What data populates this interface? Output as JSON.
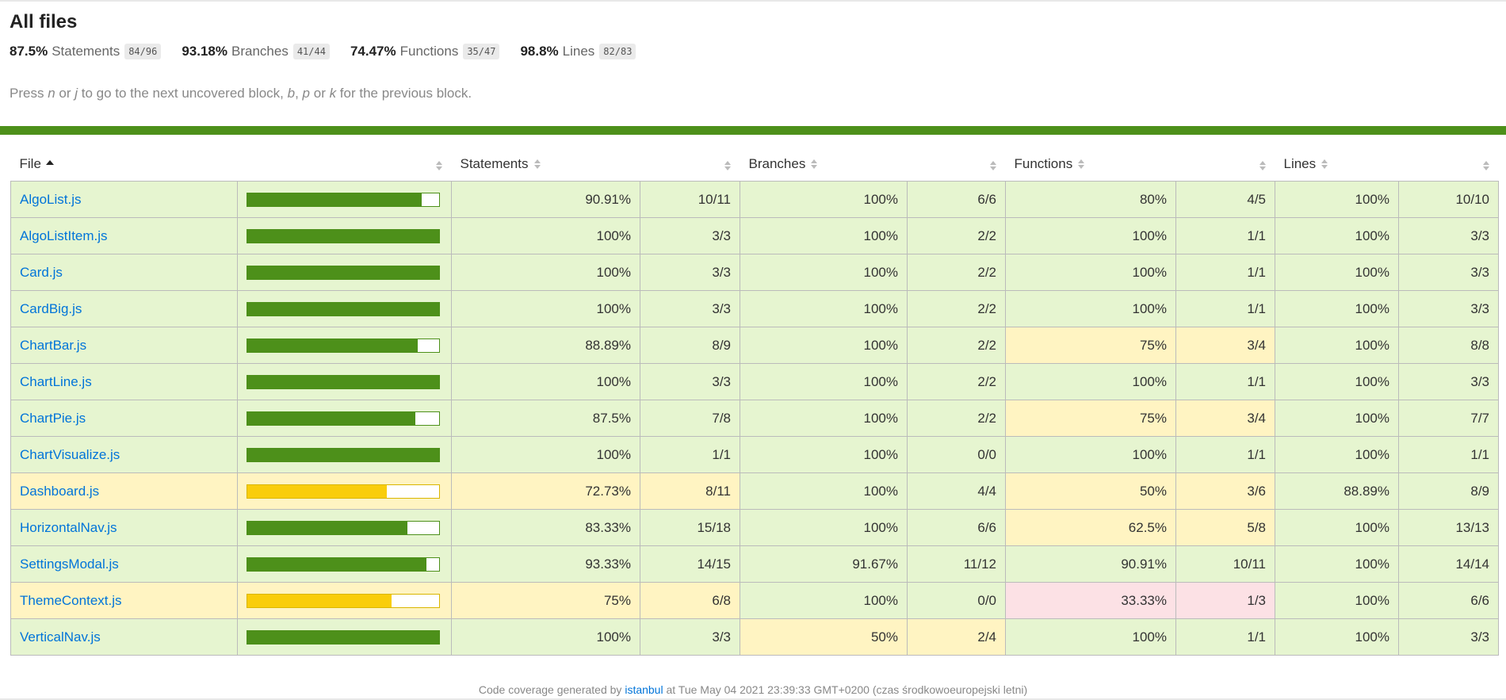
{
  "title": "All files",
  "summary": [
    {
      "pct": "87.5%",
      "label": "Statements",
      "frac": "84/96"
    },
    {
      "pct": "93.18%",
      "label": "Branches",
      "frac": "41/44"
    },
    {
      "pct": "74.47%",
      "label": "Functions",
      "frac": "35/47"
    },
    {
      "pct": "98.8%",
      "label": "Lines",
      "frac": "82/83"
    }
  ],
  "hint": {
    "p1": "Press ",
    "k1": "n",
    "p2": " or ",
    "k2": "j",
    "p3": " to go to the next uncovered block, ",
    "k3": "b",
    "p4": ", ",
    "k4": "p",
    "p5": " or ",
    "k5": "k",
    "p6": " for the previous block."
  },
  "headers": {
    "file": "File",
    "statements": "Statements",
    "branches": "Branches",
    "functions": "Functions",
    "lines": "Lines"
  },
  "rows": [
    {
      "file": "AlgoList.js",
      "level": "high",
      "coverage": 0.9091,
      "s_pct": "90.91%",
      "s_frac": "10/11",
      "b_pct": "100%",
      "b_frac": "6/6",
      "b_lvl": "high",
      "f_pct": "80%",
      "f_frac": "4/5",
      "f_lvl": "high",
      "l_pct": "100%",
      "l_frac": "10/10"
    },
    {
      "file": "AlgoListItem.js",
      "level": "high",
      "coverage": 1.0,
      "s_pct": "100%",
      "s_frac": "3/3",
      "b_pct": "100%",
      "b_frac": "2/2",
      "b_lvl": "high",
      "f_pct": "100%",
      "f_frac": "1/1",
      "f_lvl": "high",
      "l_pct": "100%",
      "l_frac": "3/3"
    },
    {
      "file": "Card.js",
      "level": "high",
      "coverage": 1.0,
      "s_pct": "100%",
      "s_frac": "3/3",
      "b_pct": "100%",
      "b_frac": "2/2",
      "b_lvl": "high",
      "f_pct": "100%",
      "f_frac": "1/1",
      "f_lvl": "high",
      "l_pct": "100%",
      "l_frac": "3/3"
    },
    {
      "file": "CardBig.js",
      "level": "high",
      "coverage": 1.0,
      "s_pct": "100%",
      "s_frac": "3/3",
      "b_pct": "100%",
      "b_frac": "2/2",
      "b_lvl": "high",
      "f_pct": "100%",
      "f_frac": "1/1",
      "f_lvl": "high",
      "l_pct": "100%",
      "l_frac": "3/3"
    },
    {
      "file": "ChartBar.js",
      "level": "high",
      "coverage": 0.8889,
      "s_pct": "88.89%",
      "s_frac": "8/9",
      "b_pct": "100%",
      "b_frac": "2/2",
      "b_lvl": "high",
      "f_pct": "75%",
      "f_frac": "3/4",
      "f_lvl": "medium",
      "l_pct": "100%",
      "l_frac": "8/8"
    },
    {
      "file": "ChartLine.js",
      "level": "high",
      "coverage": 1.0,
      "s_pct": "100%",
      "s_frac": "3/3",
      "b_pct": "100%",
      "b_frac": "2/2",
      "b_lvl": "high",
      "f_pct": "100%",
      "f_frac": "1/1",
      "f_lvl": "high",
      "l_pct": "100%",
      "l_frac": "3/3"
    },
    {
      "file": "ChartPie.js",
      "level": "high",
      "coverage": 0.875,
      "s_pct": "87.5%",
      "s_frac": "7/8",
      "b_pct": "100%",
      "b_frac": "2/2",
      "b_lvl": "high",
      "f_pct": "75%",
      "f_frac": "3/4",
      "f_lvl": "medium",
      "l_pct": "100%",
      "l_frac": "7/7"
    },
    {
      "file": "ChartVisualize.js",
      "level": "high",
      "coverage": 1.0,
      "s_pct": "100%",
      "s_frac": "1/1",
      "b_pct": "100%",
      "b_frac": "0/0",
      "b_lvl": "high",
      "f_pct": "100%",
      "f_frac": "1/1",
      "f_lvl": "high",
      "l_pct": "100%",
      "l_frac": "1/1"
    },
    {
      "file": "Dashboard.js",
      "level": "medium",
      "coverage": 0.7273,
      "s_pct": "72.73%",
      "s_frac": "8/11",
      "b_pct": "100%",
      "b_frac": "4/4",
      "b_lvl": "high",
      "f_pct": "50%",
      "f_frac": "3/6",
      "f_lvl": "medium",
      "l_pct": "88.89%",
      "l_frac": "8/9"
    },
    {
      "file": "HorizontalNav.js",
      "level": "high",
      "coverage": 0.8333,
      "s_pct": "83.33%",
      "s_frac": "15/18",
      "b_pct": "100%",
      "b_frac": "6/6",
      "b_lvl": "high",
      "f_pct": "62.5%",
      "f_frac": "5/8",
      "f_lvl": "medium",
      "l_pct": "100%",
      "l_frac": "13/13"
    },
    {
      "file": "SettingsModal.js",
      "level": "high",
      "coverage": 0.9333,
      "s_pct": "93.33%",
      "s_frac": "14/15",
      "b_pct": "91.67%",
      "b_frac": "11/12",
      "b_lvl": "high",
      "f_pct": "90.91%",
      "f_frac": "10/11",
      "f_lvl": "high",
      "l_pct": "100%",
      "l_frac": "14/14"
    },
    {
      "file": "ThemeContext.js",
      "level": "medium",
      "coverage": 0.75,
      "s_pct": "75%",
      "s_frac": "6/8",
      "b_pct": "100%",
      "b_frac": "0/0",
      "b_lvl": "high",
      "f_pct": "33.33%",
      "f_frac": "1/3",
      "f_lvl": "low",
      "l_pct": "100%",
      "l_frac": "6/6"
    },
    {
      "file": "VerticalNav.js",
      "level": "high",
      "coverage": 1.0,
      "s_pct": "100%",
      "s_frac": "3/3",
      "b_pct": "50%",
      "b_frac": "2/4",
      "b_lvl": "medium",
      "f_pct": "100%",
      "f_frac": "1/1",
      "f_lvl": "high",
      "l_pct": "100%",
      "l_frac": "3/3"
    }
  ],
  "footer": {
    "prefix": "Code coverage generated by ",
    "link": "istanbul",
    "suffix": " at Tue May 04 2021 23:39:33 GMT+0200 (czas środkowoeuropejski letni)"
  },
  "colors": {
    "high_bg": "#e6f5d0",
    "medium_bg": "#fff4c2",
    "low_bg": "#fce1e5",
    "bar_green": "#4d901a",
    "bar_yellow": "#f9cd0b",
    "link": "#0074d9"
  }
}
